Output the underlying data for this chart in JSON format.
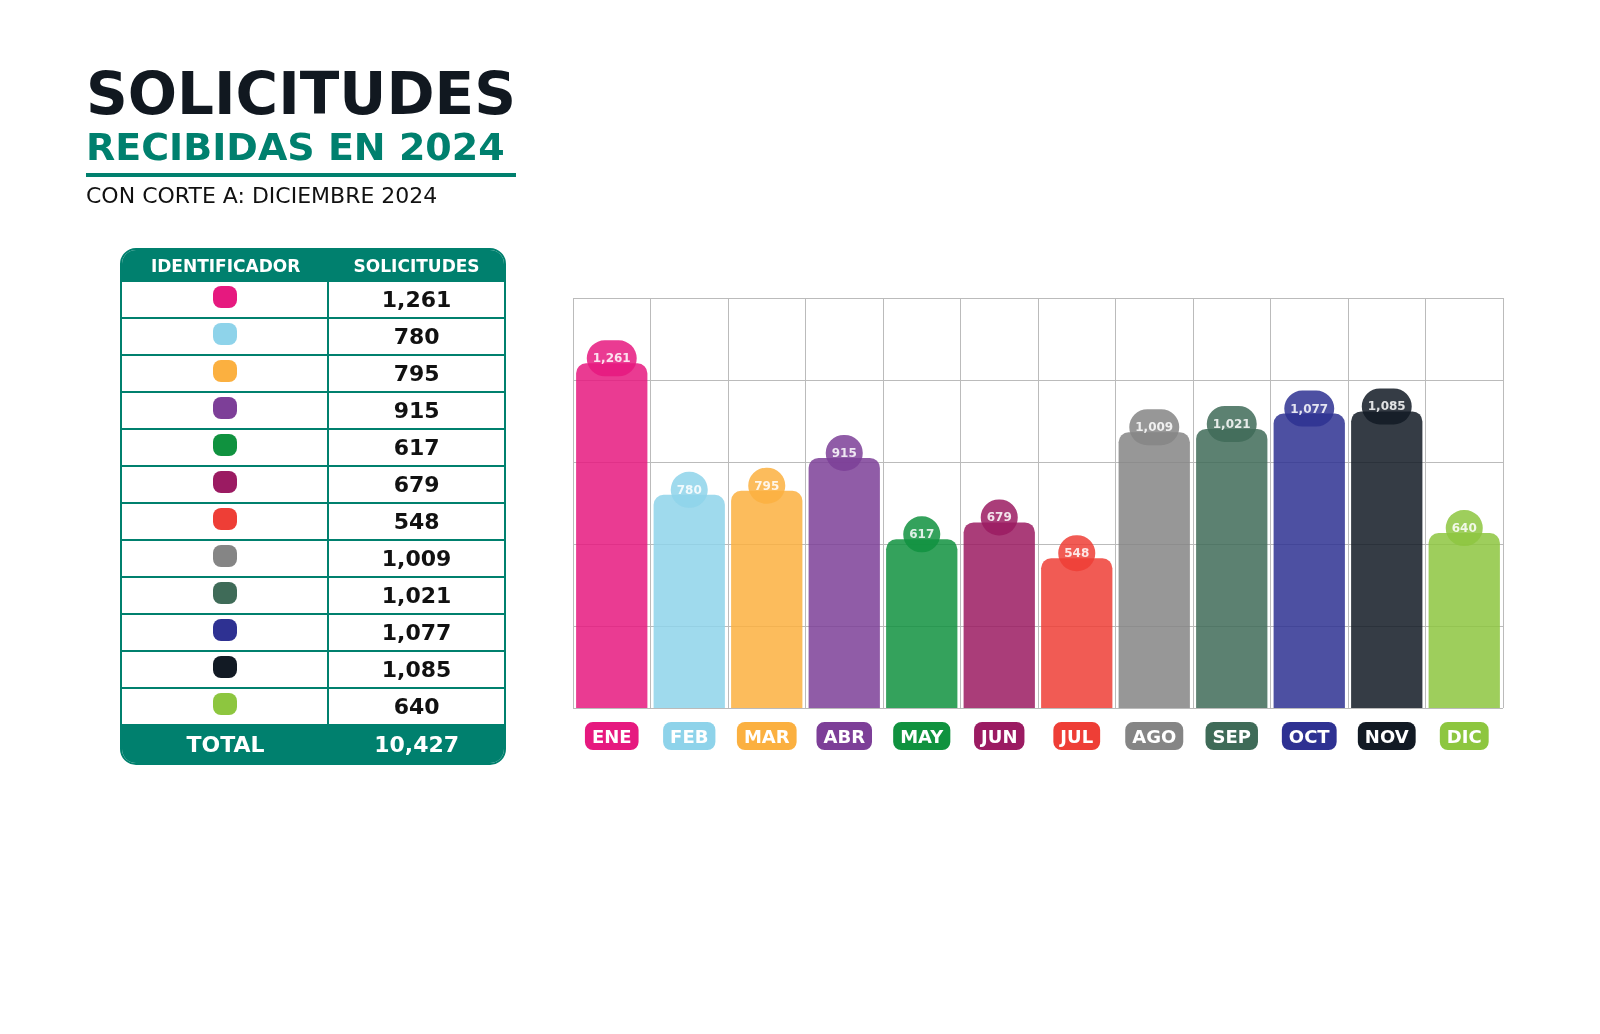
{
  "chart_data": {
    "type": "bar",
    "title": "SOLICITUDES",
    "subtitle": "RECIBIDAS EN 2024",
    "annotations": [
      "CON CORTE A: DICIEMBRE 2024",
      "IDENTIFICADOR",
      "SOLICITUDES",
      "TOTAL",
      "10,427"
    ],
    "categories": [
      "ENE",
      "FEB",
      "MAR",
      "ABR",
      "MAY",
      "JUN",
      "JUL",
      "AGO",
      "SEP",
      "OCT",
      "NOV",
      "DIC"
    ],
    "values": [
      1261,
      780,
      795,
      915,
      617,
      679,
      548,
      1009,
      1021,
      1077,
      1085,
      640
    ],
    "colors": [
      "#e6197f",
      "#8ed3ea",
      "#fbb040",
      "#7d3f98",
      "#10923f",
      "#9b1b62",
      "#ee3e36",
      "#858585",
      "#3f6b58",
      "#2e3192",
      "#121a24",
      "#8dc63f"
    ],
    "value_labels": [
      "1,261",
      "780",
      "795",
      "915",
      "617",
      "679",
      "548",
      "1,009",
      "1,021",
      "1,077",
      "1,085",
      "640"
    ],
    "grid": true
  }
}
